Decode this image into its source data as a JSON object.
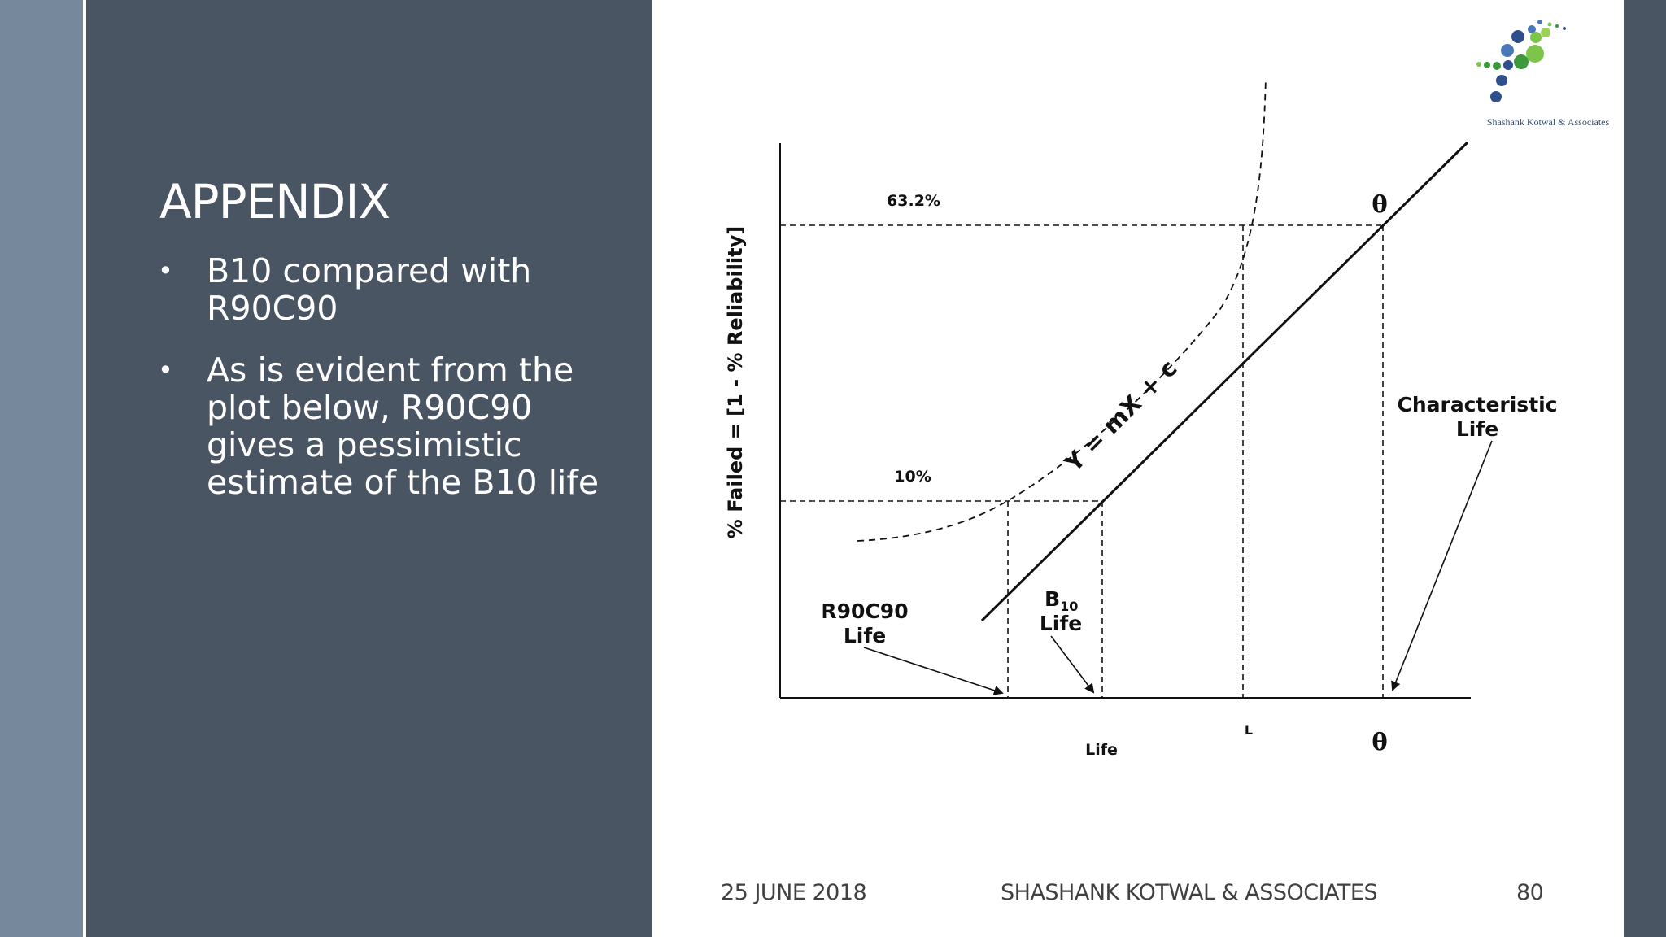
{
  "slide": {
    "title": "APPENDIX",
    "bullets": [
      {
        "text": "B10 compared with R90C90"
      },
      {
        "text": "As is evident from the plot below, R90C90 gives a pessimistic estimate of the B10 life"
      }
    ],
    "bullet_glyph": "•"
  },
  "logo": {
    "icon": "dots-logo-icon",
    "text": "Shashank Kotwal & Associates",
    "colors": [
      "#2f4f8c",
      "#4a78b8",
      "#3c9a3c",
      "#7cc44a"
    ]
  },
  "diagram": {
    "y_axis_label": "% Failed = [1 - % Reliability]",
    "x_axis_label": "Life",
    "level_high": "63.2%",
    "level_low": "10%",
    "theta_top": "θ",
    "theta_bottom": "θ",
    "l_marker": "L",
    "line_equation": "Y = mX + c",
    "r90c90_label": [
      "R90C90",
      "Life"
    ],
    "b10_label_main": "B",
    "b10_label_sub": "10",
    "b10_label_second": "Life",
    "characteristic_label": [
      "Characteristic",
      "Life"
    ]
  },
  "footer": {
    "date": "25 JUNE 2018",
    "company": "SHASHANK KOTWAL & ASSOCIATES",
    "page": "80"
  },
  "colors": {
    "panel": "#4a5564",
    "strip": "#76899c",
    "text_light": "#ffffff",
    "footer_text": "#404040"
  }
}
